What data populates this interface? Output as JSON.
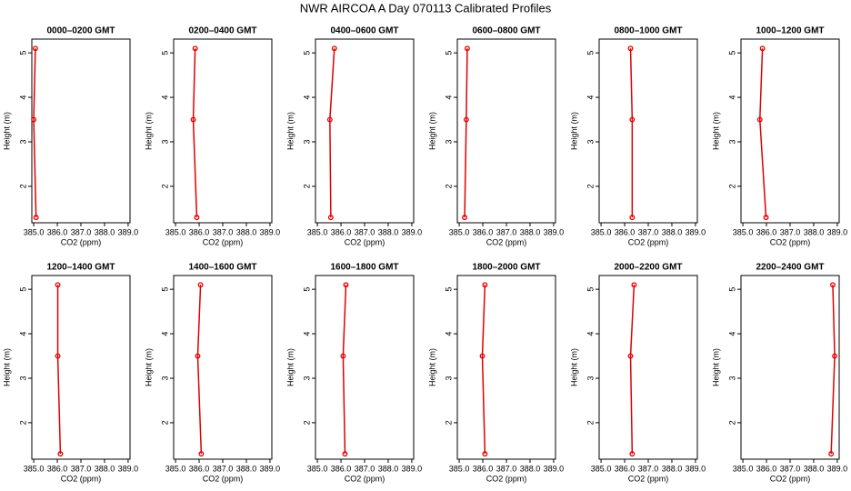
{
  "title": "NWR AIRCOA A  Day 070113  Calibrated Profiles",
  "chart_data": [
    {
      "type": "line",
      "title": "0000–0200 GMT",
      "x_label": "CO2 (ppm)",
      "y_label": "Height (m)",
      "color": "#e00000",
      "x": [
        385.07,
        385.0,
        385.1
      ],
      "values": [
        5.1,
        3.5,
        1.3
      ],
      "xlim": [
        384.92,
        389.08
      ],
      "xticks": [
        {
          "value": 385,
          "label": "385.0"
        },
        {
          "value": 386,
          "label": "386.0"
        },
        {
          "value": 387,
          "label": "387.0"
        },
        {
          "value": 388,
          "label": "388.0"
        },
        {
          "value": 389,
          "label": "389.0"
        }
      ],
      "ylim": [
        1.18,
        5.31
      ],
      "yticks": [
        2,
        3,
        4,
        5
      ]
    },
    {
      "type": "line",
      "title": "0200–0400 GMT",
      "x_label": "CO2 (ppm)",
      "y_label": "Height (m)",
      "color": "#e00000",
      "x": [
        385.83,
        385.75,
        385.9
      ],
      "values": [
        5.1,
        3.5,
        1.3
      ],
      "xlim": [
        384.92,
        389.08
      ],
      "xticks": [
        {
          "value": 385,
          "label": "385.0"
        },
        {
          "value": 386,
          "label": "386.0"
        },
        {
          "value": 387,
          "label": "387.0"
        },
        {
          "value": 388,
          "label": "388.0"
        },
        {
          "value": 389,
          "label": "389.0"
        }
      ],
      "ylim": [
        1.18,
        5.31
      ],
      "yticks": [
        2,
        3,
        4,
        5
      ]
    },
    {
      "type": "line",
      "title": "0400–0600 GMT",
      "x_label": "CO2 (ppm)",
      "y_label": "Height (m)",
      "color": "#e00000",
      "x": [
        385.72,
        385.53,
        385.57
      ],
      "values": [
        5.1,
        3.5,
        1.3
      ],
      "xlim": [
        384.92,
        389.08
      ],
      "xticks": [
        {
          "value": 385,
          "label": "385.0"
        },
        {
          "value": 386,
          "label": "386.0"
        },
        {
          "value": 387,
          "label": "387.0"
        },
        {
          "value": 388,
          "label": "388.0"
        },
        {
          "value": 389,
          "label": "389.0"
        }
      ],
      "ylim": [
        1.18,
        5.31
      ],
      "yticks": [
        2,
        3,
        4,
        5
      ]
    },
    {
      "type": "line",
      "title": "0600–0800 GMT",
      "x_label": "CO2 (ppm)",
      "y_label": "Height (m)",
      "color": "#e00000",
      "x": [
        385.34,
        385.3,
        385.23
      ],
      "values": [
        5.1,
        3.5,
        1.3
      ],
      "xlim": [
        384.92,
        389.08
      ],
      "xticks": [
        {
          "value": 385,
          "label": "385.0"
        },
        {
          "value": 386,
          "label": "386.0"
        },
        {
          "value": 387,
          "label": "387.0"
        },
        {
          "value": 388,
          "label": "388.0"
        },
        {
          "value": 389,
          "label": "389.0"
        }
      ],
      "ylim": [
        1.18,
        5.31
      ],
      "yticks": [
        2,
        3,
        4,
        5
      ]
    },
    {
      "type": "line",
      "title": "0800–1000 GMT",
      "x_label": "CO2 (ppm)",
      "y_label": "Height (m)",
      "color": "#e00000",
      "x": [
        386.25,
        386.32,
        386.32
      ],
      "values": [
        5.1,
        3.5,
        1.3
      ],
      "xlim": [
        384.92,
        389.08
      ],
      "xticks": [
        {
          "value": 385,
          "label": "385.0"
        },
        {
          "value": 386,
          "label": "386.0"
        },
        {
          "value": 387,
          "label": "387.0"
        },
        {
          "value": 388,
          "label": "388.0"
        },
        {
          "value": 389,
          "label": "389.0"
        }
      ],
      "ylim": [
        1.18,
        5.31
      ],
      "yticks": [
        2,
        3,
        4,
        5
      ]
    },
    {
      "type": "line",
      "title": "1000–1200 GMT",
      "x_label": "CO2 (ppm)",
      "y_label": "Height (m)",
      "color": "#e00000",
      "x": [
        385.83,
        385.72,
        385.98
      ],
      "values": [
        5.1,
        3.5,
        1.3
      ],
      "xlim": [
        384.92,
        389.08
      ],
      "xticks": [
        {
          "value": 385,
          "label": "385.0"
        },
        {
          "value": 386,
          "label": "386.0"
        },
        {
          "value": 387,
          "label": "387.0"
        },
        {
          "value": 388,
          "label": "388.0"
        },
        {
          "value": 389,
          "label": "389.0"
        }
      ],
      "ylim": [
        1.18,
        5.31
      ],
      "yticks": [
        2,
        3,
        4,
        5
      ]
    },
    {
      "type": "line",
      "title": "1200–1400 GMT",
      "x_label": "CO2 (ppm)",
      "y_label": "Height (m)",
      "color": "#e00000",
      "x": [
        386.02,
        386.02,
        386.13
      ],
      "values": [
        5.1,
        3.5,
        1.3
      ],
      "xlim": [
        384.92,
        389.08
      ],
      "xticks": [
        {
          "value": 385,
          "label": "385.0"
        },
        {
          "value": 386,
          "label": "386.0"
        },
        {
          "value": 387,
          "label": "387.0"
        },
        {
          "value": 388,
          "label": "388.0"
        },
        {
          "value": 389,
          "label": "389.0"
        }
      ],
      "ylim": [
        1.18,
        5.31
      ],
      "yticks": [
        2,
        3,
        4,
        5
      ]
    },
    {
      "type": "line",
      "title": "1400–1600 GMT",
      "x_label": "CO2 (ppm)",
      "y_label": "Height (m)",
      "color": "#e00000",
      "x": [
        386.06,
        385.94,
        386.09
      ],
      "values": [
        5.1,
        3.5,
        1.3
      ],
      "xlim": [
        384.92,
        389.08
      ],
      "xticks": [
        {
          "value": 385,
          "label": "385.0"
        },
        {
          "value": 386,
          "label": "386.0"
        },
        {
          "value": 387,
          "label": "387.0"
        },
        {
          "value": 388,
          "label": "388.0"
        },
        {
          "value": 389,
          "label": "389.0"
        }
      ],
      "ylim": [
        1.18,
        5.31
      ],
      "yticks": [
        2,
        3,
        4,
        5
      ]
    },
    {
      "type": "line",
      "title": "1600–1800 GMT",
      "x_label": "CO2 (ppm)",
      "y_label": "Height (m)",
      "color": "#e00000",
      "x": [
        386.21,
        386.09,
        386.17
      ],
      "values": [
        5.1,
        3.5,
        1.3
      ],
      "xlim": [
        384.92,
        389.08
      ],
      "xticks": [
        {
          "value": 385,
          "label": "385.0"
        },
        {
          "value": 386,
          "label": "386.0"
        },
        {
          "value": 387,
          "label": "387.0"
        },
        {
          "value": 388,
          "label": "388.0"
        },
        {
          "value": 389,
          "label": "389.0"
        }
      ],
      "ylim": [
        1.18,
        5.31
      ],
      "yticks": [
        2,
        3,
        4,
        5
      ]
    },
    {
      "type": "line",
      "title": "1800–2000 GMT",
      "x_label": "CO2 (ppm)",
      "y_label": "Height (m)",
      "color": "#e00000",
      "x": [
        386.09,
        385.98,
        386.09
      ],
      "values": [
        5.1,
        3.5,
        1.3
      ],
      "xlim": [
        384.92,
        389.08
      ],
      "xticks": [
        {
          "value": 385,
          "label": "385.0"
        },
        {
          "value": 386,
          "label": "386.0"
        },
        {
          "value": 387,
          "label": "387.0"
        },
        {
          "value": 388,
          "label": "388.0"
        },
        {
          "value": 389,
          "label": "389.0"
        }
      ],
      "ylim": [
        1.18,
        5.31
      ],
      "yticks": [
        2,
        3,
        4,
        5
      ]
    },
    {
      "type": "line",
      "title": "2000–2200 GMT",
      "x_label": "CO2 (ppm)",
      "y_label": "Height (m)",
      "color": "#e00000",
      "x": [
        386.4,
        386.25,
        386.32
      ],
      "values": [
        5.1,
        3.5,
        1.3
      ],
      "xlim": [
        384.92,
        389.08
      ],
      "xticks": [
        {
          "value": 385,
          "label": "385.0"
        },
        {
          "value": 386,
          "label": "386.0"
        },
        {
          "value": 387,
          "label": "387.0"
        },
        {
          "value": 388,
          "label": "388.0"
        },
        {
          "value": 389,
          "label": "389.0"
        }
      ],
      "ylim": [
        1.18,
        5.31
      ],
      "yticks": [
        2,
        3,
        4,
        5
      ]
    },
    {
      "type": "line",
      "title": "2200–2400 GMT",
      "x_label": "CO2 (ppm)",
      "y_label": "Height (m)",
      "color": "#e00000",
      "x": [
        388.81,
        388.89,
        388.74
      ],
      "values": [
        5.1,
        3.5,
        1.3
      ],
      "xlim": [
        384.92,
        389.08
      ],
      "xticks": [
        {
          "value": 385,
          "label": "385.0"
        },
        {
          "value": 386,
          "label": "386.0"
        },
        {
          "value": 387,
          "label": "387.0"
        },
        {
          "value": 388,
          "label": "388.0"
        },
        {
          "value": 389,
          "label": "389.0"
        }
      ],
      "ylim": [
        1.18,
        5.31
      ],
      "yticks": [
        2,
        3,
        4,
        5
      ]
    }
  ]
}
